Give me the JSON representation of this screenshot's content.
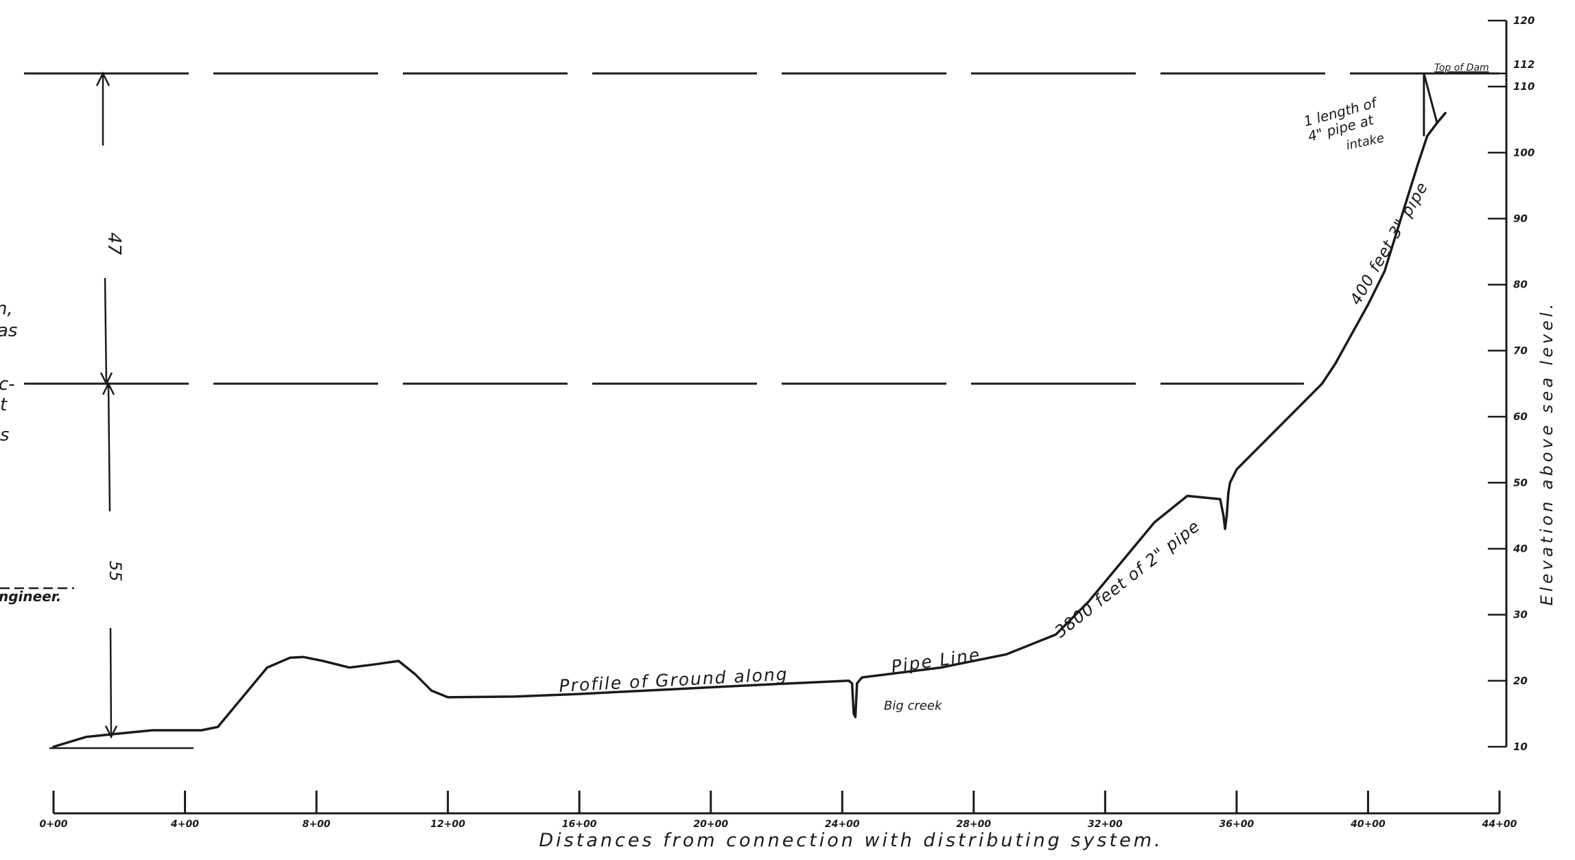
{
  "chart_data": {
    "type": "line",
    "title": "",
    "xlabel": "Distances from connection with distributing system.",
    "ylabel": "Elevation above sea level.",
    "xlim": [
      0,
      4400
    ],
    "ylim": [
      10,
      120
    ],
    "x_ticks": [
      {
        "value": 0,
        "label": "0+00"
      },
      {
        "value": 400,
        "label": "4+00"
      },
      {
        "value": 800,
        "label": "8+00"
      },
      {
        "value": 1200,
        "label": "12+00"
      },
      {
        "value": 1600,
        "label": "16+00"
      },
      {
        "value": 2000,
        "label": "20+00"
      },
      {
        "value": 2400,
        "label": "24+00"
      },
      {
        "value": 2800,
        "label": "28+00"
      },
      {
        "value": 3200,
        "label": "32+00"
      },
      {
        "value": 3600,
        "label": "36+00"
      },
      {
        "value": 4000,
        "label": "40+00"
      },
      {
        "value": 4400,
        "label": "44+00"
      }
    ],
    "y_ticks": [
      {
        "value": 10,
        "label": "10"
      },
      {
        "value": 20,
        "label": "20"
      },
      {
        "value": 30,
        "label": "30"
      },
      {
        "value": 40,
        "label": "40"
      },
      {
        "value": 50,
        "label": "50"
      },
      {
        "value": 60,
        "label": "60"
      },
      {
        "value": 70,
        "label": "70"
      },
      {
        "value": 80,
        "label": "80"
      },
      {
        "value": 90,
        "label": "90"
      },
      {
        "value": 100,
        "label": "100"
      },
      {
        "value": 110,
        "label": "110"
      },
      {
        "value": 112,
        "label": "112"
      },
      {
        "value": 120,
        "label": "120"
      }
    ],
    "series": [
      {
        "x": [
          0,
          100,
          200,
          300,
          450,
          500,
          550,
          650,
          720,
          760,
          820,
          900,
          980,
          1050,
          1100,
          1150,
          1200,
          1400,
          1600,
          1800,
          2000,
          2200,
          2420,
          2430,
          2435,
          2440,
          2445,
          2460,
          2700,
          2900,
          3050,
          3150,
          3250,
          3350,
          3450,
          3550,
          3560,
          3565,
          3570,
          3575,
          3580,
          3600,
          3700,
          3800,
          3860,
          3900,
          4000,
          4050,
          4100,
          4150,
          4180,
          4210,
          4235
        ],
        "y": [
          10,
          11.5,
          12,
          12.5,
          12.5,
          13,
          16,
          22,
          23.5,
          23.6,
          23,
          22,
          22.5,
          23,
          21,
          18.5,
          17.5,
          17.6,
          18,
          18.5,
          19,
          19.5,
          20,
          19.6,
          15,
          14.5,
          19.6,
          20.5,
          22,
          24,
          27,
          32,
          38,
          44,
          48,
          47.5,
          45,
          43,
          45,
          48.5,
          50,
          52,
          57,
          62,
          65,
          68,
          77,
          82,
          90,
          98,
          102.5,
          104.5,
          106
        ]
      }
    ],
    "grid": false,
    "legend": "none",
    "dashed_levels": [
      65,
      112
    ],
    "top_of_dam": 112,
    "line_color": "#1a1a1a"
  },
  "annotations": {
    "profile_a": "Profile of Ground along",
    "profile_b": "Pipe Line",
    "big_creek": "Big creek",
    "pipe_2in": "3800 feet of 2\" pipe",
    "pipe_3in": "400 feet 3\" pipe",
    "intake_1": "1 length of",
    "intake_2": "4\" pipe at",
    "intake_3": "intake",
    "top_of_dam": "Top of Dam",
    "dim_upper": "47",
    "dim_lower": "55",
    "signature": "ngineer."
  },
  "margin_text": [
    "n,",
    "as",
    "c-",
    "t",
    "s"
  ]
}
